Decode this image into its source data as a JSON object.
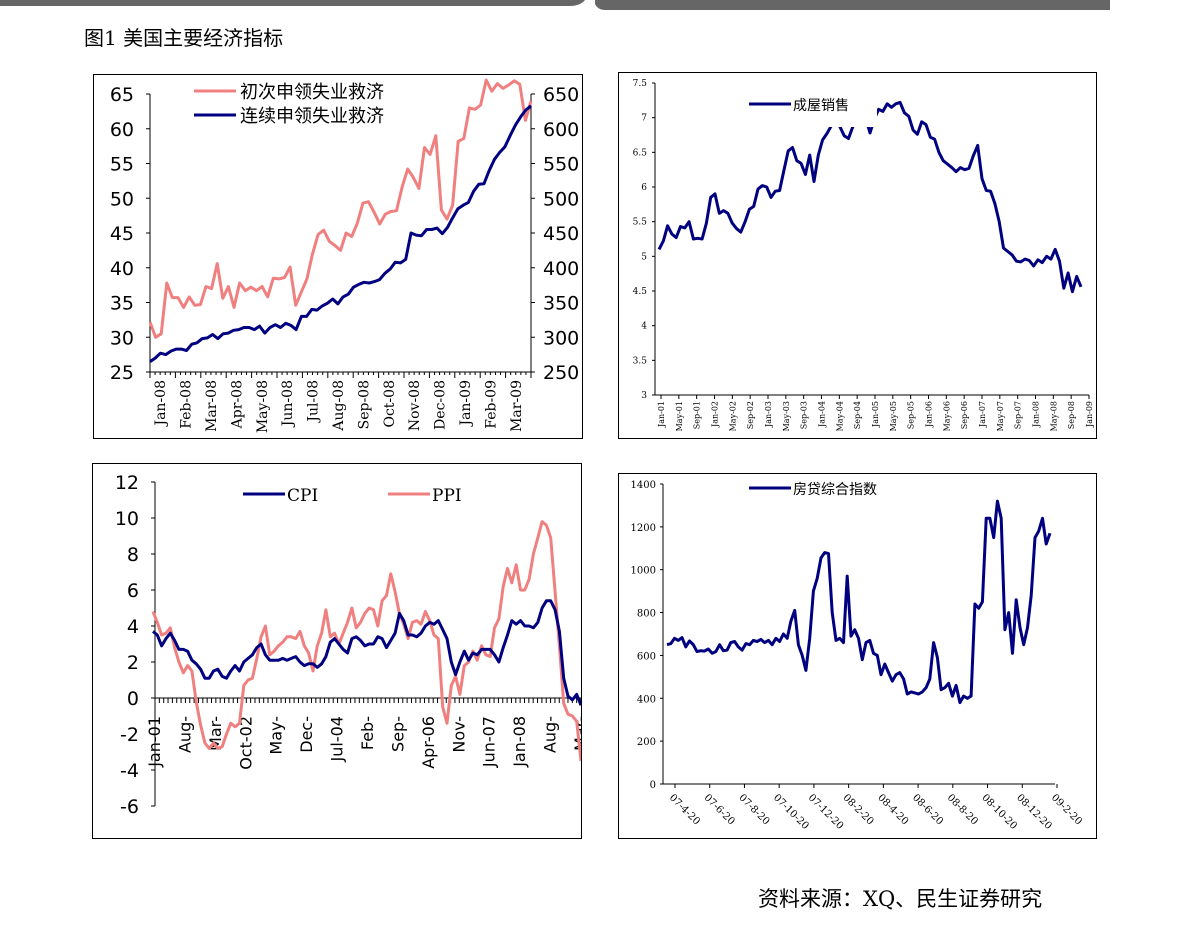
{
  "header": {
    "figure_title": "图1  美国主要经济指标",
    "source": "资料来源：XQ、民生证券研究"
  },
  "colors": {
    "navy": "#000080",
    "salmon": "#F08080",
    "bar": "#666666"
  },
  "chart_data": [
    {
      "id": "claims",
      "type": "line",
      "legend": [
        "初次申领失业救济",
        "连续申领失业救济"
      ],
      "yleft": {
        "min": 25,
        "max": 65,
        "ticks": [
          25,
          30,
          35,
          40,
          45,
          50,
          55,
          60,
          65
        ]
      },
      "yright": {
        "min": 250,
        "max": 650,
        "ticks": [
          250,
          300,
          350,
          400,
          450,
          500,
          550,
          600,
          650
        ]
      },
      "xticks": [
        "Jan-08",
        "Feb-08",
        "Mar-08",
        "Apr-08",
        "May-08",
        "Jun-08",
        "Jul-08",
        "Aug-08",
        "Sep-08",
        "Oct-08",
        "Nov-08",
        "Dec-08",
        "Jan-09",
        "Feb-09",
        "Mar-09"
      ],
      "series": [
        {
          "name": "初次申领失业救济",
          "axis": "right",
          "values": [
            322,
            300,
            305,
            378,
            357,
            357,
            343,
            358,
            346,
            347,
            373,
            370,
            406,
            356,
            373,
            343,
            378,
            367,
            372,
            367,
            373,
            358,
            385,
            384,
            386,
            401,
            346,
            365,
            384,
            420,
            448,
            454,
            438,
            432,
            425,
            450,
            445,
            464,
            493,
            495,
            480,
            463,
            477,
            481,
            482,
            516,
            542,
            530,
            514,
            573,
            563,
            590,
            483,
            470,
            490,
            582,
            586,
            630,
            628,
            634,
            670,
            654,
            665,
            658,
            663,
            669,
            664,
            612,
            640
          ]
        },
        {
          "name": "连续申领失业救济",
          "axis": "right",
          "values": [
            265,
            270,
            277,
            275,
            280,
            283,
            283,
            281,
            290,
            292,
            298,
            299,
            304,
            298,
            305,
            306,
            310,
            311,
            314,
            314,
            311,
            316,
            306,
            314,
            318,
            314,
            320,
            317,
            311,
            330,
            330,
            340,
            339,
            345,
            349,
            355,
            348,
            358,
            362,
            372,
            376,
            379,
            378,
            380,
            383,
            392,
            398,
            408,
            407,
            412,
            450,
            447,
            446,
            455,
            455,
            457,
            449,
            458,
            472,
            485,
            490,
            494,
            510,
            520,
            521,
            540,
            556,
            566,
            574,
            590,
            605,
            617,
            627,
            633
          ]
        }
      ]
    },
    {
      "id": "home-sales",
      "type": "line",
      "legend": [
        "成屋销售"
      ],
      "ylim": [
        3,
        7.5
      ],
      "yticks": [
        "3",
        "3.5",
        "4",
        "4.5",
        "5",
        "5.5",
        "6",
        "6.5",
        "7",
        "7.5"
      ],
      "xticks": [
        "Jan-01",
        "May-01",
        "Sep-01",
        "Jan-02",
        "May-02",
        "Sep-02",
        "Jan-03",
        "May-03",
        "Sep-03",
        "Jan-04",
        "May-04",
        "Sep-04",
        "Jan-05",
        "May-05",
        "Sep-05",
        "Jan-06",
        "May-06",
        "Sep-06",
        "Jan-07",
        "May-07",
        "Sep-07",
        "Jan-08",
        "May-08",
        "Sep-08",
        "Jan-09"
      ],
      "series": [
        {
          "name": "成屋销售",
          "values": [
            5.1,
            5.22,
            5.44,
            5.32,
            5.27,
            5.43,
            5.41,
            5.5,
            5.25,
            5.26,
            5.25,
            5.48,
            5.85,
            5.9,
            5.62,
            5.66,
            5.62,
            5.48,
            5.4,
            5.35,
            5.5,
            5.68,
            5.72,
            5.97,
            6.02,
            6.0,
            5.85,
            5.94,
            5.95,
            6.24,
            6.52,
            6.57,
            6.38,
            6.34,
            6.18,
            6.46,
            6.08,
            6.46,
            6.68,
            6.77,
            6.88,
            6.99,
            6.87,
            6.74,
            6.7,
            6.87,
            6.95,
            6.92,
            6.99,
            6.78,
            6.98,
            7.12,
            7.09,
            7.2,
            7.15,
            7.2,
            7.22,
            7.07,
            7.02,
            6.82,
            6.76,
            6.94,
            6.9,
            6.72,
            6.69,
            6.5,
            6.38,
            6.33,
            6.28,
            6.22,
            6.28,
            6.25,
            6.27,
            6.45,
            6.6,
            6.12,
            5.95,
            5.94,
            5.76,
            5.5,
            5.12,
            5.07,
            5.02,
            4.93,
            4.92,
            4.96,
            4.94,
            4.86,
            4.95,
            4.91,
            5.0,
            4.96,
            5.1,
            4.93,
            4.54,
            4.76,
            4.49,
            4.71,
            4.56
          ]
        }
      ]
    },
    {
      "id": "cpi-ppi",
      "type": "line",
      "legend": [
        "CPI",
        "PPI"
      ],
      "ylim": [
        -6,
        12
      ],
      "yticks": [
        "-6",
        "-4",
        "-2",
        "0",
        "2",
        "4",
        "6",
        "8",
        "10",
        "12"
      ],
      "xticks": [
        "Jan-01",
        "Aug-",
        "Mar-",
        "Oct-02",
        "May-",
        "Dec-",
        "Jul-04",
        "Feb-",
        "Sep-",
        "Apr-06",
        "Nov-",
        "Jun-07",
        "Jan-08",
        "Aug-",
        "Mar-"
      ],
      "series": [
        {
          "name": "CPI",
          "values": [
            3.7,
            3.5,
            2.9,
            3.3,
            3.6,
            3.2,
            2.7,
            2.7,
            2.6,
            2.1,
            1.9,
            1.6,
            1.1,
            1.1,
            1.5,
            1.6,
            1.2,
            1.1,
            1.5,
            1.8,
            1.5,
            2.0,
            2.2,
            2.4,
            2.8,
            3.0,
            2.4,
            2.1,
            2.1,
            2.1,
            2.2,
            2.1,
            2.2,
            2.3,
            2.0,
            1.8,
            1.9,
            1.9,
            1.7,
            1.9,
            2.3,
            3.1,
            3.3,
            3.0,
            2.7,
            2.5,
            3.3,
            3.4,
            3.2,
            2.9,
            3.0,
            3.0,
            3.4,
            3.3,
            2.8,
            3.2,
            3.6,
            4.7,
            4.3,
            3.5,
            3.5,
            3.4,
            3.6,
            4.0,
            4.2,
            4.1,
            4.3,
            3.8,
            3.3,
            2.0,
            1.3,
            2.0,
            2.6,
            2.1,
            2.5,
            2.4,
            2.7,
            2.7,
            2.7,
            2.4,
            2.0,
            2.8,
            3.5,
            4.3,
            4.1,
            4.3,
            4.0,
            4.0,
            3.9,
            4.2,
            5.0,
            5.4,
            5.4,
            4.9,
            3.7,
            1.1,
            0.1,
            -0.1,
            0.2,
            -0.4
          ]
        },
        {
          "name": "PPI",
          "values": [
            4.8,
            4.2,
            3.5,
            3.6,
            3.9,
            2.8,
            2.0,
            1.4,
            1.8,
            1.5,
            -0.2,
            -1.5,
            -2.5,
            -2.8,
            -2.5,
            -2.8,
            -2.7,
            -2.0,
            -1.4,
            -1.6,
            -1.4,
            0.7,
            1.0,
            1.1,
            2.2,
            3.4,
            4.0,
            2.4,
            2.6,
            2.9,
            3.1,
            3.4,
            3.4,
            3.3,
            3.7,
            2.9,
            2.5,
            1.5,
            2.9,
            3.6,
            4.9,
            3.4,
            3.6,
            3.0,
            3.6,
            4.2,
            5.0,
            3.9,
            4.2,
            4.7,
            5.0,
            4.9,
            4.0,
            5.4,
            5.7,
            6.9,
            5.9,
            4.7,
            4.1,
            3.3,
            4.2,
            4.3,
            4.1,
            4.8,
            4.3,
            3.5,
            3.3,
            -0.5,
            -1.4,
            0.7,
            1.2,
            0.2,
            1.8,
            2.0,
            2.6,
            2.1,
            2.9,
            2.4,
            2.3,
            3.9,
            4.4,
            6.2,
            7.2,
            6.4,
            7.4,
            6.0,
            6.0,
            6.6,
            8.0,
            8.9,
            9.8,
            9.6,
            8.9,
            5.9,
            2.9,
            -0.3,
            -0.9,
            -1.0,
            -1.3,
            -3.5
          ]
        }
      ]
    },
    {
      "id": "mortgage-index",
      "type": "line",
      "legend": [
        "房贷综合指数"
      ],
      "ylim": [
        0,
        1400
      ],
      "yticks": [
        "0",
        "200",
        "400",
        "600",
        "800",
        "1000",
        "1200",
        "1400"
      ],
      "xticks": [
        "07-4-20",
        "07-6-20",
        "07-8-20",
        "07-10-20",
        "07-12-20",
        "08-2-20",
        "08-4-20",
        "08-6-20",
        "08-8-20",
        "08-10-20",
        "08-12-20",
        "09-2-20"
      ],
      "series": [
        {
          "name": "房贷综合指数",
          "values": [
            650,
            655,
            680,
            670,
            683,
            640,
            668,
            650,
            618,
            622,
            620,
            630,
            610,
            618,
            650,
            622,
            625,
            660,
            665,
            640,
            625,
            655,
            650,
            670,
            665,
            675,
            660,
            670,
            650,
            680,
            665,
            700,
            680,
            760,
            810,
            650,
            600,
            530,
            680,
            900,
            960,
            1055,
            1080,
            1075,
            800,
            670,
            680,
            660,
            970,
            690,
            720,
            680,
            580,
            660,
            670,
            610,
            600,
            510,
            560,
            520,
            480,
            510,
            520,
            490,
            420,
            430,
            425,
            420,
            430,
            450,
            490,
            660,
            590,
            440,
            450,
            470,
            410,
            460,
            380,
            410,
            400,
            410,
            840,
            820,
            850,
            1240,
            1240,
            1150,
            1320,
            1240,
            720,
            800,
            610,
            860,
            730,
            650,
            730,
            880,
            1150,
            1180,
            1240,
            1120,
            1170
          ]
        }
      ]
    }
  ]
}
